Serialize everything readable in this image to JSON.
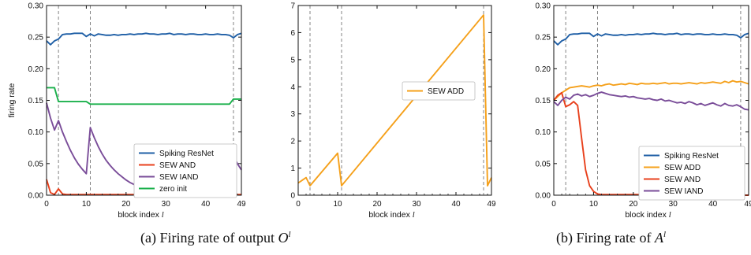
{
  "chart_data": [
    {
      "type": "line",
      "ylabel": "firing rate",
      "xlabel": "block index",
      "xlabel_var": "l",
      "xlim": [
        0,
        49
      ],
      "ylim": [
        0,
        0.3
      ],
      "xticks": [
        0,
        10,
        20,
        30,
        40,
        49
      ],
      "yticks": [
        "0.00",
        "0.05",
        "0.10",
        "0.15",
        "0.20",
        "0.25",
        "0.30"
      ],
      "vlines": [
        3,
        11,
        47
      ],
      "legend_position": "center-right",
      "series": [
        {
          "name": "Spiking ResNet",
          "color": "#1f5fa6",
          "x": [
            0,
            1,
            2,
            3,
            4,
            5,
            6,
            7,
            8,
            9,
            10,
            11,
            12,
            13,
            14,
            15,
            16,
            17,
            18,
            19,
            20,
            21,
            22,
            23,
            24,
            25,
            26,
            27,
            28,
            29,
            30,
            31,
            32,
            33,
            34,
            35,
            36,
            37,
            38,
            39,
            40,
            41,
            42,
            43,
            44,
            45,
            46,
            47,
            48,
            49
          ],
          "y": [
            0.244,
            0.238,
            0.244,
            0.247,
            0.254,
            0.255,
            0.255,
            0.256,
            0.256,
            0.256,
            0.251,
            0.255,
            0.252,
            0.255,
            0.254,
            0.253,
            0.253,
            0.254,
            0.253,
            0.254,
            0.254,
            0.255,
            0.254,
            0.255,
            0.255,
            0.256,
            0.255,
            0.255,
            0.254,
            0.255,
            0.255,
            0.256,
            0.254,
            0.255,
            0.255,
            0.254,
            0.255,
            0.255,
            0.254,
            0.254,
            0.255,
            0.254,
            0.254,
            0.255,
            0.254,
            0.254,
            0.253,
            0.249,
            0.254,
            0.256
          ]
        },
        {
          "name": "SEW AND",
          "color": "#e8401c",
          "x": [
            0,
            1,
            2,
            3,
            4,
            5,
            6,
            7,
            8,
            9,
            10,
            11,
            12,
            13,
            14,
            15,
            16,
            17,
            18,
            19,
            20,
            21,
            22,
            23,
            24,
            25,
            26,
            27,
            28,
            29,
            30,
            31,
            32,
            33,
            34,
            35,
            36,
            37,
            38,
            39,
            40,
            41,
            42,
            43,
            44,
            45,
            46,
            47,
            48,
            49
          ],
          "y": [
            0.025,
            0.004,
            0.001,
            0.01,
            0.002,
            0.001,
            0.001,
            0.001,
            0.001,
            0.001,
            0.001,
            0.001,
            0.001,
            0.001,
            0.001,
            0.001,
            0.001,
            0.001,
            0.001,
            0.001,
            0.001,
            0.001,
            0.001,
            0.001,
            0.001,
            0.001,
            0.001,
            0.001,
            0.001,
            0.001,
            0.001,
            0.001,
            0.001,
            0.001,
            0.001,
            0.001,
            0.001,
            0.001,
            0.001,
            0.001,
            0.001,
            0.001,
            0.001,
            0.001,
            0.001,
            0.001,
            0.001,
            0.001,
            0.001,
            0.001
          ]
        },
        {
          "name": "SEW IAND",
          "color": "#7a4d99",
          "x": [
            0,
            1,
            2,
            3,
            4,
            5,
            6,
            7,
            8,
            9,
            10,
            11,
            12,
            13,
            14,
            15,
            16,
            17,
            18,
            19,
            20,
            21,
            22,
            23,
            24,
            25,
            26,
            27,
            28,
            29,
            30,
            31,
            32,
            33,
            34,
            35,
            36,
            37,
            38,
            39,
            40,
            41,
            42,
            43,
            44,
            45,
            46,
            47,
            48,
            49
          ],
          "y": [
            0.146,
            0.122,
            0.103,
            0.118,
            0.1,
            0.085,
            0.071,
            0.059,
            0.049,
            0.041,
            0.034,
            0.107,
            0.091,
            0.077,
            0.065,
            0.055,
            0.047,
            0.04,
            0.034,
            0.029,
            0.024,
            0.02,
            0.017,
            0.015,
            0.012,
            0.01,
            0.009,
            0.008,
            0.006,
            0.005,
            0.005,
            0.004,
            0.003,
            0.003,
            0.002,
            0.002,
            0.002,
            0.002,
            0.001,
            0.001,
            0.001,
            0.001,
            0.001,
            0.001,
            0.001,
            0.001,
            0.001,
            0.062,
            0.05,
            0.04
          ]
        },
        {
          "name": "zero init",
          "color": "#1ab04b",
          "x": [
            0,
            1,
            2,
            3,
            4,
            5,
            6,
            7,
            8,
            9,
            10,
            11,
            12,
            13,
            14,
            15,
            16,
            17,
            18,
            19,
            20,
            21,
            22,
            23,
            24,
            25,
            26,
            27,
            28,
            29,
            30,
            31,
            32,
            33,
            34,
            35,
            36,
            37,
            38,
            39,
            40,
            41,
            42,
            43,
            44,
            45,
            46,
            47,
            48,
            49
          ],
          "y": [
            0.17,
            0.17,
            0.17,
            0.148,
            0.148,
            0.148,
            0.148,
            0.148,
            0.148,
            0.148,
            0.148,
            0.144,
            0.144,
            0.144,
            0.144,
            0.144,
            0.144,
            0.144,
            0.144,
            0.144,
            0.144,
            0.144,
            0.144,
            0.144,
            0.144,
            0.144,
            0.144,
            0.144,
            0.144,
            0.144,
            0.144,
            0.144,
            0.144,
            0.144,
            0.144,
            0.144,
            0.144,
            0.144,
            0.144,
            0.144,
            0.144,
            0.144,
            0.144,
            0.144,
            0.144,
            0.144,
            0.144,
            0.152,
            0.152,
            0.152
          ]
        }
      ]
    },
    {
      "type": "line",
      "ylabel": "",
      "xlabel": "block index",
      "xlabel_var": "l",
      "xlim": [
        0,
        49
      ],
      "ylim": [
        0,
        7
      ],
      "xticks": [
        0,
        10,
        20,
        30,
        40,
        49
      ],
      "yticks": [
        "0",
        "1",
        "2",
        "3",
        "4",
        "5",
        "6",
        "7"
      ],
      "vlines": [
        3,
        11,
        47
      ],
      "legend_position": "center-right",
      "series": [
        {
          "name": "SEW ADD",
          "color": "#f5a01a",
          "x": [
            0,
            2,
            3,
            10,
            11,
            47,
            48,
            49
          ],
          "y": [
            0.45,
            0.65,
            0.35,
            1.55,
            0.35,
            6.65,
            0.35,
            0.65
          ]
        }
      ]
    },
    {
      "type": "line",
      "ylabel": "",
      "xlabel": "block index",
      "xlabel_var": "l",
      "xlim": [
        0,
        49
      ],
      "ylim": [
        0,
        0.3
      ],
      "xticks": [
        0,
        10,
        20,
        30,
        40,
        49
      ],
      "yticks": [
        "0.00",
        "0.05",
        "0.10",
        "0.15",
        "0.20",
        "0.25",
        "0.30"
      ],
      "vlines": [
        3,
        11,
        47
      ],
      "legend_position": "lower-right",
      "series": [
        {
          "name": "Spiking ResNet",
          "color": "#1f5fa6",
          "x": [
            0,
            1,
            2,
            3,
            4,
            5,
            6,
            7,
            8,
            9,
            10,
            11,
            12,
            13,
            14,
            15,
            16,
            17,
            18,
            19,
            20,
            21,
            22,
            23,
            24,
            25,
            26,
            27,
            28,
            29,
            30,
            31,
            32,
            33,
            34,
            35,
            36,
            37,
            38,
            39,
            40,
            41,
            42,
            43,
            44,
            45,
            46,
            47,
            48,
            49
          ],
          "y": [
            0.244,
            0.238,
            0.244,
            0.247,
            0.254,
            0.255,
            0.255,
            0.256,
            0.256,
            0.256,
            0.251,
            0.255,
            0.252,
            0.255,
            0.254,
            0.253,
            0.253,
            0.254,
            0.253,
            0.254,
            0.254,
            0.255,
            0.254,
            0.255,
            0.255,
            0.256,
            0.255,
            0.255,
            0.254,
            0.255,
            0.255,
            0.256,
            0.254,
            0.255,
            0.255,
            0.254,
            0.255,
            0.255,
            0.254,
            0.254,
            0.255,
            0.254,
            0.254,
            0.255,
            0.254,
            0.254,
            0.253,
            0.249,
            0.254,
            0.256
          ]
        },
        {
          "name": "SEW ADD",
          "color": "#f5a01a",
          "x": [
            0,
            1,
            2,
            3,
            4,
            5,
            6,
            7,
            8,
            9,
            10,
            11,
            12,
            13,
            14,
            15,
            16,
            17,
            18,
            19,
            20,
            21,
            22,
            23,
            24,
            25,
            26,
            27,
            28,
            29,
            30,
            31,
            32,
            33,
            34,
            35,
            36,
            37,
            38,
            39,
            40,
            41,
            42,
            43,
            44,
            45,
            46,
            47,
            48,
            49
          ],
          "y": [
            0.15,
            0.156,
            0.162,
            0.166,
            0.17,
            0.171,
            0.172,
            0.173,
            0.172,
            0.171,
            0.173,
            0.174,
            0.173,
            0.175,
            0.176,
            0.174,
            0.175,
            0.176,
            0.175,
            0.177,
            0.176,
            0.175,
            0.177,
            0.176,
            0.176,
            0.177,
            0.176,
            0.177,
            0.178,
            0.176,
            0.177,
            0.177,
            0.176,
            0.177,
            0.178,
            0.177,
            0.176,
            0.178,
            0.177,
            0.178,
            0.179,
            0.178,
            0.177,
            0.18,
            0.178,
            0.181,
            0.179,
            0.18,
            0.178,
            0.176
          ]
        },
        {
          "name": "SEW AND",
          "color": "#e8401c",
          "x": [
            0,
            1,
            2,
            3,
            4,
            5,
            6,
            7,
            8,
            9,
            10,
            11,
            12,
            13,
            14,
            15,
            16,
            17,
            18,
            19,
            20,
            21,
            22,
            23,
            24,
            25,
            26,
            27,
            28,
            29,
            30,
            31,
            32,
            33,
            34,
            35,
            36,
            37,
            38,
            39,
            40,
            41,
            42,
            43,
            44,
            45,
            46,
            47,
            48,
            49
          ],
          "y": [
            0.15,
            0.158,
            0.162,
            0.14,
            0.143,
            0.148,
            0.142,
            0.09,
            0.04,
            0.015,
            0.006,
            0.002,
            0.001,
            0.001,
            0.001,
            0.001,
            0.001,
            0.001,
            0.001,
            0.001,
            0.001,
            0.001,
            0.001,
            0.001,
            0.0,
            0.0,
            0.0,
            0.0,
            0.0,
            0.0,
            0.0,
            0.0,
            0.0,
            0.0,
            0.0,
            0.0,
            0.0,
            0.0,
            0.0,
            0.0,
            0.0,
            0.0,
            0.0,
            0.0,
            0.0,
            0.0,
            0.0,
            0.0,
            0.0,
            0.0
          ]
        },
        {
          "name": "SEW IAND",
          "color": "#7a4d99",
          "x": [
            0,
            1,
            2,
            3,
            4,
            5,
            6,
            7,
            8,
            9,
            10,
            11,
            12,
            13,
            14,
            15,
            16,
            17,
            18,
            19,
            20,
            21,
            22,
            23,
            24,
            25,
            26,
            27,
            28,
            29,
            30,
            31,
            32,
            33,
            34,
            35,
            36,
            37,
            38,
            39,
            40,
            41,
            42,
            43,
            44,
            45,
            46,
            47,
            48,
            49
          ],
          "y": [
            0.148,
            0.142,
            0.15,
            0.155,
            0.152,
            0.158,
            0.16,
            0.157,
            0.159,
            0.156,
            0.158,
            0.161,
            0.163,
            0.161,
            0.159,
            0.158,
            0.157,
            0.156,
            0.157,
            0.155,
            0.156,
            0.154,
            0.153,
            0.152,
            0.153,
            0.151,
            0.15,
            0.152,
            0.149,
            0.15,
            0.148,
            0.146,
            0.147,
            0.145,
            0.148,
            0.146,
            0.143,
            0.145,
            0.142,
            0.144,
            0.146,
            0.143,
            0.141,
            0.145,
            0.142,
            0.141,
            0.143,
            0.14,
            0.136,
            0.135
          ]
        }
      ]
    }
  ],
  "captions": {
    "a": {
      "text": "(a)  Firing rate of output ",
      "var": "O",
      "sup": "l"
    },
    "b": {
      "text": "(b)  Firing rate of ",
      "var": "A",
      "sup": "l"
    }
  }
}
